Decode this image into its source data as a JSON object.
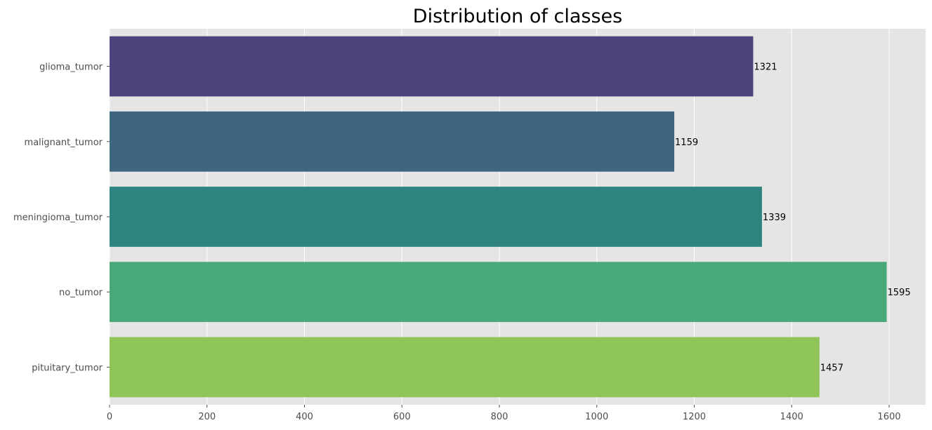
{
  "chart_data": {
    "type": "bar",
    "orientation": "horizontal",
    "title": "Distribution of classes",
    "xlabel": "",
    "ylabel": "",
    "categories": [
      "glioma_tumor",
      "malignant_tumor",
      "meningioma_tumor",
      "no_tumor",
      "pituitary_tumor"
    ],
    "values": [
      1321,
      1159,
      1339,
      1595,
      1457
    ],
    "data_labels": [
      "1321",
      "1159",
      "1339",
      "1595",
      "1457"
    ],
    "colors": [
      "#4b437b",
      "#3e6681",
      "#2f8480",
      "#48a878",
      "#8fc556"
    ],
    "xlim": [
      0,
      1675
    ],
    "xticks": [
      0,
      200,
      400,
      600,
      800,
      1000,
      1200,
      1400,
      1600
    ],
    "grid": true,
    "background_color": "#e5e5e5",
    "grid_color": "#ffffff"
  }
}
